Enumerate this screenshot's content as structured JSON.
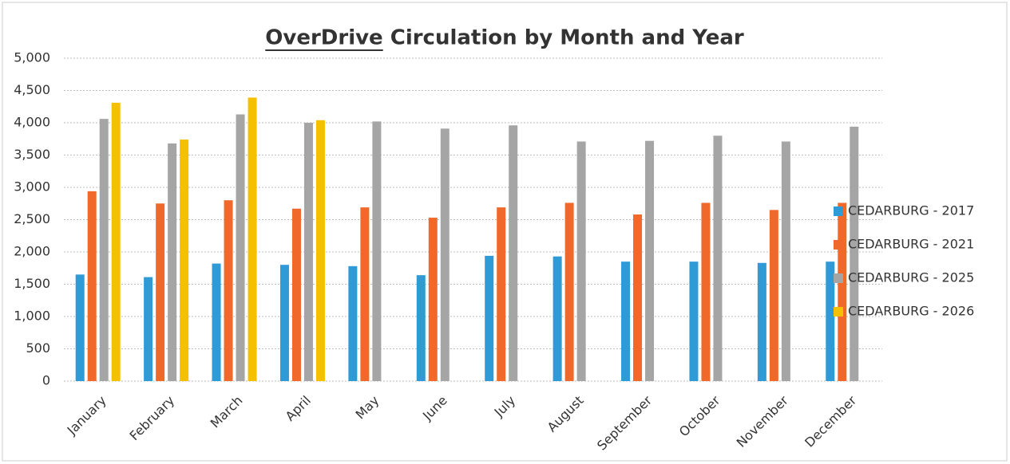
{
  "chart_data": {
    "type": "bar",
    "title": "OverDrive Circulation by Month and Year",
    "categories": [
      "January",
      "February",
      "March",
      "April",
      "May",
      "June",
      "July",
      "August",
      "September",
      "October",
      "November",
      "December"
    ],
    "series": [
      {
        "name": "CEDARBURG - 2017",
        "color": "#2e9bd6",
        "values": [
          1650,
          1610,
          1820,
          1800,
          1780,
          1640,
          1940,
          1930,
          1850,
          1850,
          1830,
          1850
        ]
      },
      {
        "name": "CEDARBURG - 2021",
        "color": "#f0692a",
        "values": [
          2940,
          2750,
          2800,
          2670,
          2690,
          2530,
          2690,
          2760,
          2580,
          2760,
          2650,
          2760
        ]
      },
      {
        "name": "CEDARBURG - 2025",
        "color": "#a5a5a5",
        "values": [
          4060,
          3680,
          4130,
          4000,
          4020,
          3910,
          3960,
          3710,
          3720,
          3800,
          3710,
          3940
        ]
      },
      {
        "name": "CEDARBURG - 2026",
        "color": "#f5c000",
        "values": [
          4310,
          3740,
          4390,
          4040,
          null,
          null,
          null,
          null,
          null,
          null,
          null,
          null
        ]
      }
    ],
    "ylim": [
      0,
      5000
    ],
    "yticks": [
      0,
      500,
      {
        "value": 1000,
        "label": "1,000"
      },
      {
        "value": 1500,
        "label": "1,500"
      },
      {
        "value": 2000,
        "label": "2,000"
      },
      {
        "value": 2500,
        "label": "2,500"
      },
      {
        "value": 3000,
        "label": "3,000"
      },
      {
        "value": 3500,
        "label": "3,500"
      },
      {
        "value": 4000,
        "label": "4,000"
      },
      {
        "value": 4500,
        "label": "4,500"
      },
      {
        "value": 5000,
        "label": "5,000"
      }
    ],
    "grid": true,
    "legend": "right"
  }
}
